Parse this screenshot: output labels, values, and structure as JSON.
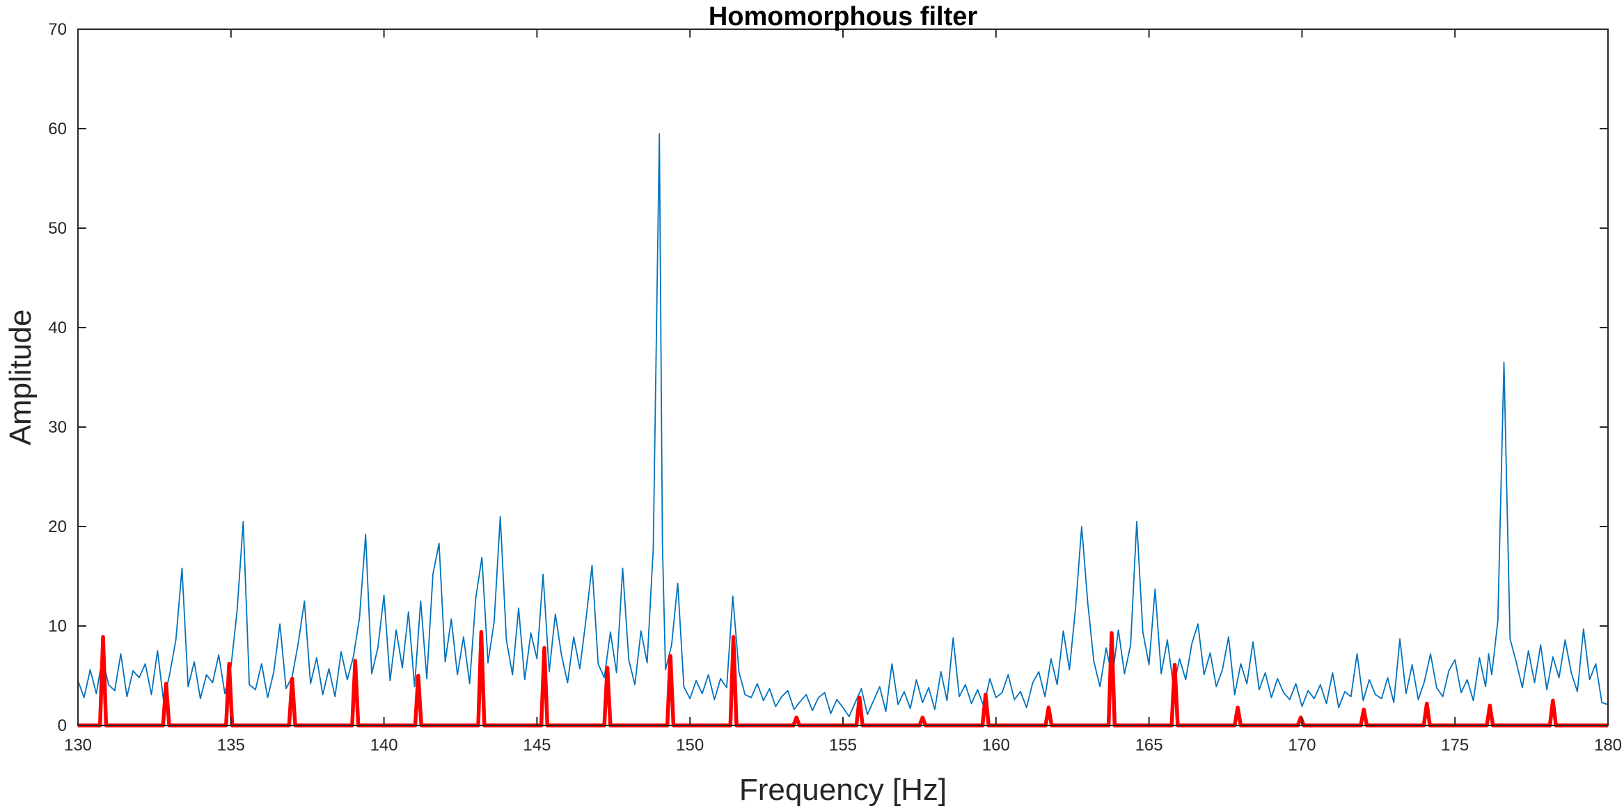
{
  "chart_data": {
    "type": "line",
    "title": "Homomorphous filter",
    "xlabel": "Frequency [Hz]",
    "ylabel": "Amplitude",
    "xlim": [
      130,
      180
    ],
    "ylim": [
      0,
      70
    ],
    "xticks": [
      130,
      135,
      140,
      145,
      150,
      155,
      160,
      165,
      170,
      175,
      180
    ],
    "yticks": [
      0,
      10,
      20,
      30,
      40,
      50,
      60,
      70
    ],
    "grid": false,
    "legend": "none",
    "colors": {
      "spectrum": "#0072BD",
      "filter": "#FF0000"
    },
    "series": [
      {
        "style": "thin line",
        "color": "#0072BD",
        "x": [
          130.0,
          130.2,
          130.4,
          130.6,
          130.8,
          131.0,
          131.2,
          131.4,
          131.6,
          131.8,
          132.0,
          132.2,
          132.4,
          132.6,
          132.8,
          133.0,
          133.2,
          133.4,
          133.6,
          133.8,
          134.0,
          134.2,
          134.4,
          134.6,
          134.8,
          135.0,
          135.2,
          135.4,
          135.6,
          135.8,
          136.0,
          136.2,
          136.4,
          136.6,
          136.8,
          137.0,
          137.2,
          137.4,
          137.6,
          137.8,
          138.0,
          138.2,
          138.4,
          138.6,
          138.8,
          139.0,
          139.2,
          139.4,
          139.6,
          139.8,
          140.0,
          140.2,
          140.4,
          140.6,
          140.8,
          141.0,
          141.2,
          141.4,
          141.6,
          141.8,
          142.0,
          142.2,
          142.4,
          142.6,
          142.8,
          143.0,
          143.2,
          143.4,
          143.6,
          143.8,
          144.0,
          144.2,
          144.4,
          144.6,
          144.8,
          145.0,
          145.2,
          145.4,
          145.6,
          145.8,
          146.0,
          146.2,
          146.4,
          146.6,
          146.8,
          147.0,
          147.2,
          147.4,
          147.6,
          147.8,
          148.0,
          148.2,
          148.4,
          148.6,
          148.8,
          149.0,
          149.1,
          149.2,
          149.4,
          149.6,
          149.8,
          150.0,
          150.2,
          150.4,
          150.6,
          150.8,
          151.0,
          151.2,
          151.4,
          151.6,
          151.8,
          152.0,
          152.2,
          152.4,
          152.6,
          152.8,
          153.0,
          153.2,
          153.4,
          153.6,
          153.8,
          154.0,
          154.2,
          154.4,
          154.6,
          154.8,
          155.0,
          155.2,
          155.4,
          155.6,
          155.8,
          156.0,
          156.2,
          156.4,
          156.6,
          156.8,
          157.0,
          157.2,
          157.4,
          157.6,
          157.8,
          158.0,
          158.2,
          158.4,
          158.6,
          158.8,
          159.0,
          159.2,
          159.4,
          159.6,
          159.8,
          160.0,
          160.2,
          160.4,
          160.6,
          160.8,
          161.0,
          161.2,
          161.4,
          161.6,
          161.8,
          162.0,
          162.2,
          162.4,
          162.6,
          162.8,
          163.0,
          163.2,
          163.4,
          163.6,
          163.8,
          164.0,
          164.2,
          164.4,
          164.6,
          164.8,
          165.0,
          165.2,
          165.4,
          165.6,
          165.8,
          166.0,
          166.2,
          166.4,
          166.6,
          166.8,
          167.0,
          167.2,
          167.4,
          167.6,
          167.8,
          168.0,
          168.2,
          168.4,
          168.6,
          168.8,
          169.0,
          169.2,
          169.4,
          169.6,
          169.8,
          170.0,
          170.2,
          170.4,
          170.6,
          170.8,
          171.0,
          171.2,
          171.4,
          171.6,
          171.8,
          172.0,
          172.2,
          172.4,
          172.6,
          172.8,
          173.0,
          173.2,
          173.4,
          173.6,
          173.8,
          174.0,
          174.2,
          174.4,
          174.6,
          174.8,
          175.0,
          175.2,
          175.4,
          175.6,
          175.8,
          176.0,
          176.1,
          176.2,
          176.4,
          176.6,
          176.8,
          177.0,
          177.2,
          177.4,
          177.6,
          177.8,
          178.0,
          178.2,
          178.4,
          178.6,
          178.8,
          179.0,
          179.2,
          179.4,
          179.6,
          179.8,
          180.0
        ],
        "y": [
          4.5,
          2.8,
          5.6,
          3.2,
          6.8,
          4.1,
          3.5,
          7.2,
          2.9,
          5.5,
          4.8,
          6.2,
          3.1,
          7.5,
          2.4,
          5.2,
          8.6,
          15.8,
          3.9,
          6.4,
          2.7,
          5.1,
          4.3,
          7.1,
          3.2,
          5.9,
          11.5,
          20.5,
          4.1,
          3.6,
          6.2,
          2.8,
          5.4,
          10.2,
          3.7,
          4.9,
          8.3,
          12.5,
          4.2,
          6.8,
          3.1,
          5.7,
          2.9,
          7.4,
          4.6,
          6.9,
          10.8,
          19.2,
          5.2,
          7.8,
          13.1,
          4.5,
          9.6,
          5.8,
          11.4,
          3.9,
          12.5,
          4.7,
          15.2,
          18.3,
          6.4,
          10.7,
          5.1,
          8.9,
          4.2,
          12.8,
          16.9,
          6.3,
          10.4,
          21.0,
          8.6,
          5.1,
          11.8,
          4.6,
          9.3,
          6.7,
          15.2,
          5.4,
          11.2,
          7.1,
          4.3,
          8.9,
          5.7,
          10.6,
          16.1,
          6.2,
          4.8,
          9.4,
          5.3,
          15.8,
          6.6,
          4.1,
          9.5,
          6.3,
          17.8,
          59.5,
          18.2,
          5.6,
          8.1,
          14.3,
          3.9,
          2.7,
          4.5,
          3.2,
          5.1,
          2.6,
          4.7,
          3.8,
          13.0,
          5.4,
          3.1,
          2.8,
          4.2,
          2.5,
          3.7,
          1.9,
          2.9,
          3.5,
          1.6,
          2.4,
          3.1,
          1.5,
          2.8,
          3.3,
          1.2,
          2.6,
          1.8,
          0.9,
          2.3,
          3.7,
          1.1,
          2.5,
          3.9,
          1.4,
          6.2,
          2.1,
          3.4,
          1.7,
          4.6,
          2.3,
          3.8,
          1.6,
          5.4,
          2.5,
          8.8,
          2.9,
          4.1,
          2.2,
          3.6,
          1.9,
          4.7,
          2.8,
          3.3,
          5.1,
          2.6,
          3.4,
          1.8,
          4.3,
          5.4,
          2.9,
          6.7,
          4.1,
          9.5,
          5.6,
          11.8,
          20.0,
          12.3,
          6.4,
          3.9,
          7.8,
          4.8,
          9.6,
          5.2,
          8.1,
          20.5,
          9.4,
          6.1,
          13.7,
          5.2,
          8.6,
          3.9,
          6.7,
          4.6,
          8.2,
          10.2,
          5.1,
          7.3,
          3.9,
          5.6,
          8.9,
          3.1,
          6.2,
          4.2,
          8.4,
          3.6,
          5.3,
          2.8,
          4.7,
          3.3,
          2.6,
          4.2,
          1.9,
          3.5,
          2.7,
          4.1,
          2.2,
          5.3,
          1.8,
          3.4,
          2.9,
          7.2,
          2.5,
          4.6,
          3.1,
          2.7,
          4.8,
          2.3,
          8.7,
          3.2,
          6.1,
          2.6,
          4.4,
          7.2,
          3.8,
          2.9,
          5.5,
          6.6,
          3.3,
          4.6,
          2.5,
          6.8,
          3.9,
          7.2,
          5.1,
          10.5,
          36.5,
          8.7,
          6.4,
          3.8,
          7.5,
          4.3,
          8.1,
          3.6,
          6.9,
          4.8,
          8.6,
          5.3,
          3.4,
          9.7,
          4.6,
          6.2,
          2.3,
          2.1
        ]
      },
      {
        "style": "thick line",
        "color": "#FF0000",
        "x": [
          130.0,
          130.72,
          130.82,
          130.92,
          132.78,
          132.88,
          132.98,
          134.84,
          134.94,
          135.04,
          136.9,
          137.0,
          137.1,
          138.96,
          139.06,
          139.16,
          141.02,
          141.12,
          141.22,
          143.08,
          143.18,
          143.28,
          145.14,
          145.24,
          145.34,
          147.2,
          147.3,
          147.4,
          149.26,
          149.36,
          149.46,
          151.32,
          151.42,
          151.52,
          153.38,
          153.48,
          153.58,
          155.44,
          155.54,
          155.64,
          157.5,
          157.6,
          157.7,
          159.56,
          159.66,
          159.76,
          161.62,
          161.72,
          161.82,
          163.68,
          163.78,
          163.88,
          165.74,
          165.84,
          165.94,
          167.8,
          167.9,
          168.0,
          169.86,
          169.96,
          170.06,
          171.92,
          172.02,
          172.12,
          173.98,
          174.08,
          174.18,
          176.04,
          176.14,
          176.24,
          178.1,
          178.2,
          178.3,
          180.0
        ],
        "y": [
          0,
          0,
          8.9,
          0,
          0,
          4.2,
          0,
          0,
          6.2,
          0,
          0,
          4.7,
          0,
          0,
          6.5,
          0,
          0,
          5.0,
          0,
          0,
          9.4,
          0,
          0,
          7.8,
          0,
          0,
          5.8,
          0,
          0,
          7.0,
          0,
          0,
          8.9,
          0,
          0,
          0.8,
          0,
          0,
          2.8,
          0,
          0,
          0.8,
          0,
          0,
          3.1,
          0,
          0,
          1.8,
          0,
          0,
          9.3,
          0,
          0,
          6.1,
          0,
          0,
          1.8,
          0,
          0,
          0.8,
          0,
          0,
          1.6,
          0,
          0,
          2.2,
          0,
          0,
          2.0,
          0,
          0,
          2.5,
          0,
          0
        ]
      }
    ]
  }
}
